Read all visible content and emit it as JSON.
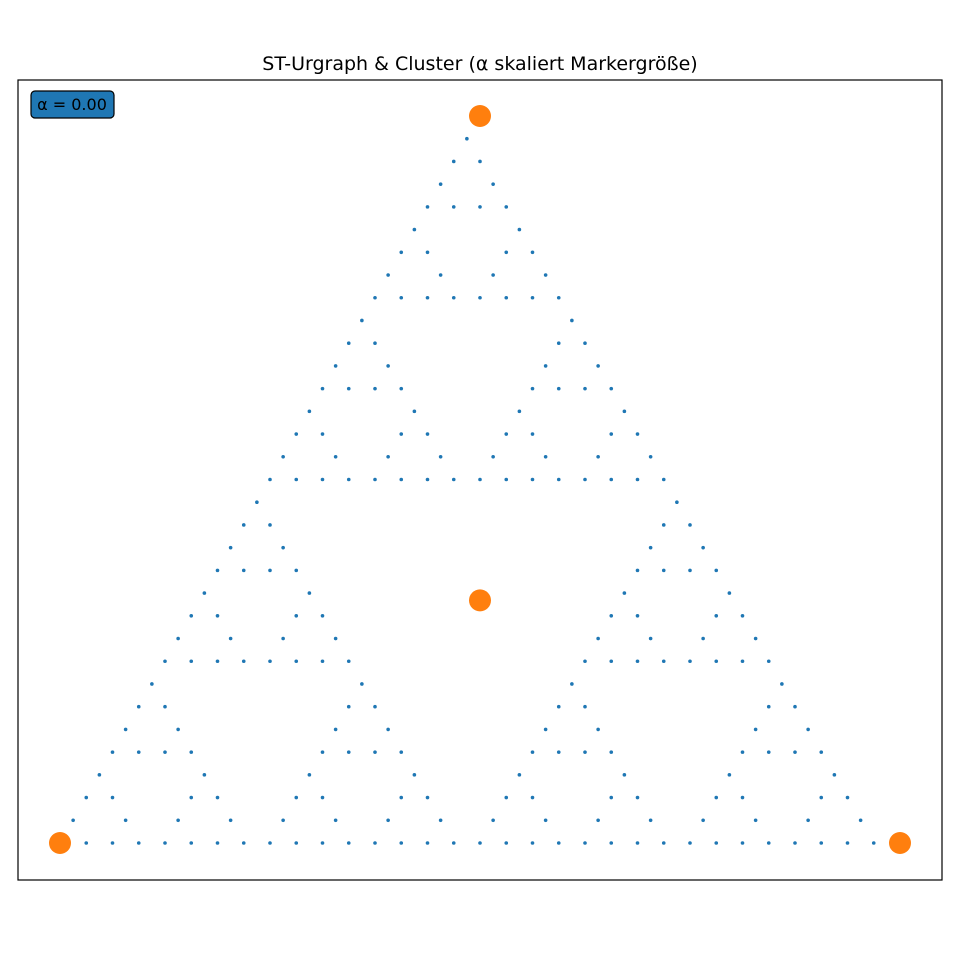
{
  "chart_data": {
    "type": "scatter",
    "title": "ST-Urgraph & Cluster (α skaliert Markergröße)",
    "xlabel": "",
    "ylabel": "",
    "annotation": "α = 0.00",
    "grid": false,
    "axes_ticks": false,
    "colors": {
      "lattice": "#1f77b4",
      "cluster": "#ff7f0e",
      "badge_fill": "#1f77b4",
      "frame": "#000000"
    },
    "xlim": [
      -0.05,
      1.05
    ],
    "ylim": [
      -0.044,
      0.91
    ],
    "lattice": {
      "description_rows": 24,
      "apex": [
        0.5,
        0.866
      ],
      "left": [
        0.0,
        0.0
      ],
      "right": [
        1.0,
        0.0
      ],
      "step": 0.03125,
      "rule": "sierpinski_level5_gaps"
    },
    "cluster_points": [
      {
        "x": 0.0,
        "y": 0.0
      },
      {
        "x": 1.0,
        "y": 0.0
      },
      {
        "x": 0.5,
        "y": 0.866
      },
      {
        "x": 0.5,
        "y": 0.289
      }
    ]
  }
}
